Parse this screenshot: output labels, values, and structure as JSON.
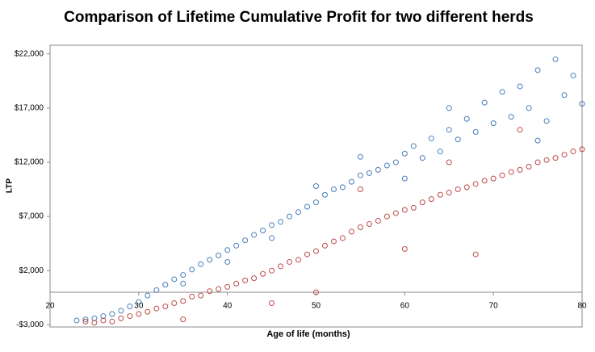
{
  "chart_data": {
    "type": "scatter",
    "title": "Comparison of Lifetime Cumulative Profit for two different herds",
    "x_label": "Age of life (months)",
    "y_label": "LTP",
    "xlim": [
      20,
      80
    ],
    "xticks": [
      20,
      30,
      40,
      50,
      60,
      70,
      80
    ],
    "ylim": [
      -3200,
      22800
    ],
    "yticks": [
      {
        "value": -3000,
        "label": "-$3,000"
      },
      {
        "value": 2000,
        "label": "$2,000"
      },
      {
        "value": 7000,
        "label": "$7,000"
      },
      {
        "value": 12000,
        "label": "$12,000"
      },
      {
        "value": 17000,
        "label": "$17,000"
      },
      {
        "value": 22000,
        "label": "$22,000"
      }
    ],
    "series": [
      {
        "color": "#4a7ebb",
        "x": [
          23,
          24,
          25,
          26,
          27,
          28,
          29,
          30,
          31,
          32,
          33,
          34,
          35,
          36,
          37,
          38,
          39,
          40,
          41,
          42,
          43,
          44,
          45,
          46,
          47,
          48,
          49,
          50,
          51,
          52,
          53,
          54,
          55,
          56,
          57,
          58,
          59,
          60,
          61,
          62,
          63,
          64,
          65,
          66,
          67,
          68,
          69,
          70,
          71,
          72,
          73,
          74,
          75,
          76,
          77,
          78,
          79,
          80,
          35,
          45,
          55,
          65,
          75,
          60,
          50,
          40
        ],
        "values": [
          -2600,
          -2500,
          -2400,
          -2200,
          -2000,
          -1700,
          -1300,
          -900,
          -300,
          200,
          700,
          1200,
          1600,
          2100,
          2600,
          3000,
          3400,
          3900,
          4300,
          4800,
          5300,
          5700,
          6200,
          6500,
          7000,
          7400,
          7900,
          8300,
          9000,
          9500,
          9700,
          10200,
          10800,
          11000,
          11300,
          11700,
          12000,
          12800,
          13500,
          12400,
          14200,
          13000,
          15000,
          14100,
          16000,
          14800,
          17500,
          15600,
          18500,
          16200,
          19000,
          17000,
          20500,
          15800,
          21500,
          18200,
          20000,
          17400,
          800,
          5000,
          12500,
          17000,
          14000,
          10500,
          9800,
          2800
        ]
      },
      {
        "color": "#be4b48",
        "x": [
          24,
          25,
          26,
          27,
          28,
          29,
          30,
          31,
          32,
          33,
          34,
          35,
          36,
          37,
          38,
          39,
          40,
          41,
          42,
          43,
          44,
          45,
          46,
          47,
          48,
          49,
          50,
          51,
          52,
          53,
          54,
          55,
          56,
          57,
          58,
          59,
          60,
          61,
          62,
          63,
          64,
          65,
          66,
          67,
          68,
          69,
          70,
          71,
          72,
          73,
          74,
          75,
          76,
          77,
          78,
          79,
          80,
          50,
          60,
          68,
          55,
          65,
          73,
          45,
          35
        ],
        "values": [
          -2700,
          -2800,
          -2600,
          -2700,
          -2400,
          -2200,
          -2000,
          -1800,
          -1500,
          -1300,
          -1000,
          -800,
          -400,
          -300,
          100,
          300,
          500,
          800,
          1100,
          1300,
          1700,
          2000,
          2400,
          2800,
          3000,
          3500,
          3800,
          4300,
          4700,
          5000,
          5600,
          6000,
          6300,
          6600,
          7000,
          7300,
          7600,
          7800,
          8300,
          8600,
          9000,
          9200,
          9500,
          9700,
          10000,
          10300,
          10500,
          10800,
          11100,
          11300,
          11600,
          12000,
          12200,
          12400,
          12700,
          13000,
          13200,
          0,
          4000,
          3500,
          9500,
          12000,
          15000,
          -1000,
          -2500
        ]
      }
    ]
  }
}
